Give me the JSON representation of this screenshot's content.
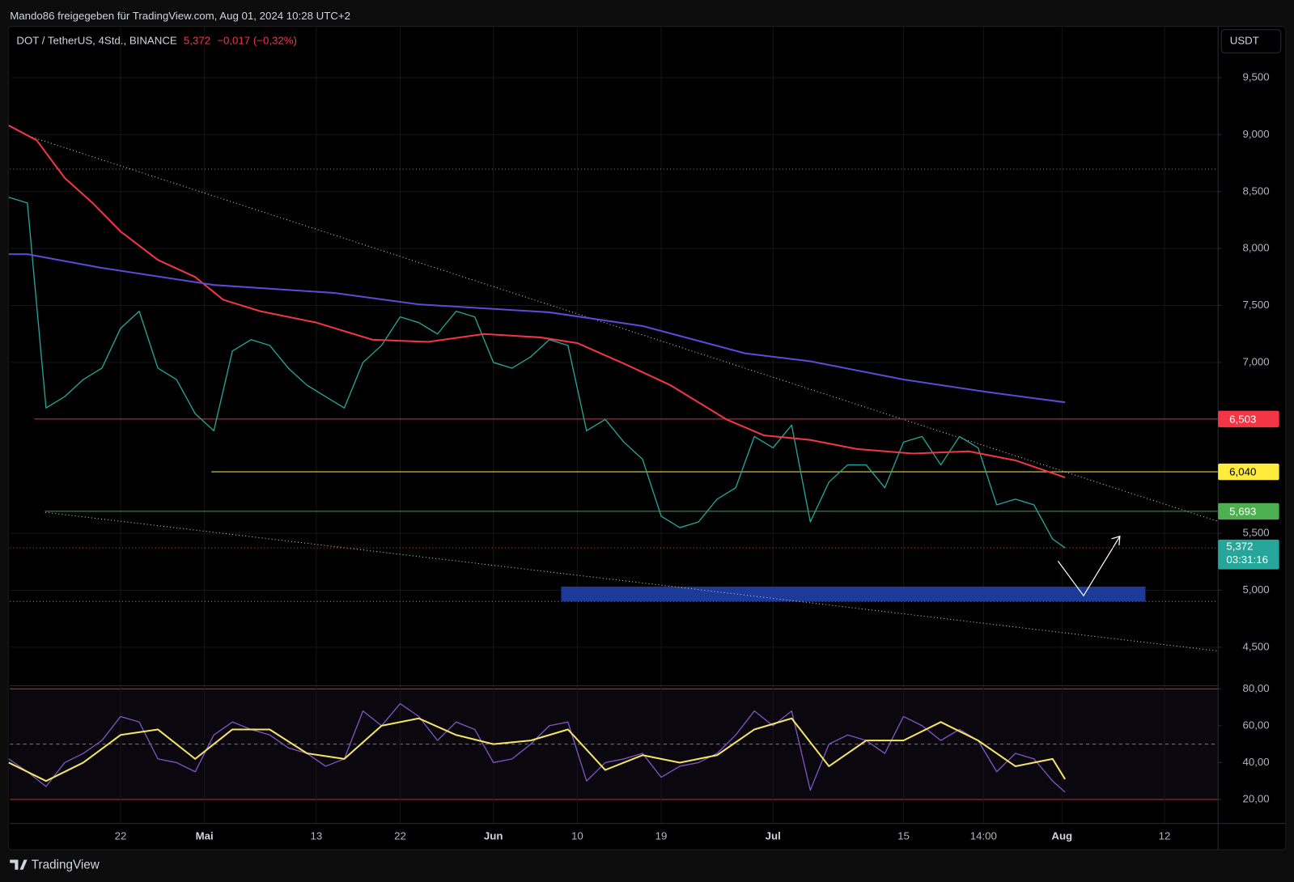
{
  "header": "Mando86 freigegeben für TradingView.com, Aug 01, 2024 10:28 UTC+2",
  "footer": "TradingView",
  "chart_data": [
    {
      "type": "line",
      "title": "DOT / TetherUS, 4Std., BINANCE",
      "last_price": "5,372",
      "change": "−0,017 (−0,32%)",
      "currency": "USDT",
      "xlim": [
        "2024-04-10T03:00",
        "2024-08-17T18:00"
      ],
      "ylim": [
        4.17,
        9.95
      ],
      "yticks": [
        {
          "value": 4.5,
          "label": "4,500"
        },
        {
          "value": 5,
          "label": "5,000"
        },
        {
          "value": 5.5,
          "label": "5,500"
        },
        {
          "value": 7,
          "label": "7,000"
        },
        {
          "value": 7.5,
          "label": "7,500"
        },
        {
          "value": 8,
          "label": "8,000"
        },
        {
          "value": 8.5,
          "label": "8,500"
        },
        {
          "value": 9,
          "label": "9,000"
        },
        {
          "value": 9.5,
          "label": "9,500"
        }
      ],
      "grid": true,
      "series": [
        {
          "color": "#26a69a",
          "x": [
            "2024-04-10",
            "2024-04-12",
            "2024-04-14",
            "2024-04-16",
            "2024-04-18",
            "2024-04-20",
            "2024-04-22",
            "2024-04-24",
            "2024-04-26",
            "2024-04-28",
            "2024-04-30",
            "2024-05-02",
            "2024-05-04",
            "2024-05-06",
            "2024-05-08",
            "2024-05-10",
            "2024-05-12",
            "2024-05-14",
            "2024-05-16",
            "2024-05-18",
            "2024-05-20",
            "2024-05-22",
            "2024-05-24",
            "2024-05-26",
            "2024-05-28",
            "2024-05-30",
            "2024-06-01",
            "2024-06-03",
            "2024-06-05",
            "2024-06-07",
            "2024-06-09",
            "2024-06-11",
            "2024-06-13",
            "2024-06-15",
            "2024-06-17",
            "2024-06-19",
            "2024-06-21",
            "2024-06-23",
            "2024-06-25",
            "2024-06-27",
            "2024-06-29",
            "2024-07-01",
            "2024-07-03",
            "2024-07-05",
            "2024-07-07",
            "2024-07-09",
            "2024-07-11",
            "2024-07-13",
            "2024-07-15",
            "2024-07-17",
            "2024-07-19",
            "2024-07-21",
            "2024-07-23",
            "2024-07-25",
            "2024-07-27",
            "2024-07-29",
            "2024-07-31",
            "2024-08-01T08:00"
          ],
          "values": [
            8.45,
            8.4,
            6.6,
            6.7,
            6.85,
            6.95,
            7.3,
            7.45,
            6.95,
            6.85,
            6.55,
            6.4,
            7.1,
            7.2,
            7.15,
            6.95,
            6.8,
            6.7,
            6.6,
            7.0,
            7.15,
            7.4,
            7.35,
            7.25,
            7.45,
            7.4,
            7.0,
            6.95,
            7.05,
            7.2,
            7.15,
            6.4,
            6.5,
            6.3,
            6.15,
            5.65,
            5.55,
            5.6,
            5.8,
            5.9,
            6.35,
            6.25,
            6.45,
            5.6,
            5.95,
            6.1,
            6.1,
            5.9,
            6.3,
            6.35,
            6.1,
            6.35,
            6.25,
            5.75,
            5.8,
            5.75,
            5.45,
            5.372
          ]
        },
        {
          "color": "#f23645",
          "x": [
            "2024-04-10",
            "2024-04-13",
            "2024-04-16",
            "2024-04-19",
            "2024-04-22",
            "2024-04-26",
            "2024-04-30",
            "2024-05-03",
            "2024-05-07",
            "2024-05-13",
            "2024-05-19",
            "2024-05-25",
            "2024-05-31",
            "2024-06-06",
            "2024-06-10",
            "2024-06-15",
            "2024-06-20",
            "2024-06-26",
            "2024-06-30",
            "2024-07-05",
            "2024-07-10",
            "2024-07-16",
            "2024-07-22",
            "2024-07-27",
            "2024-08-01T08:00"
          ],
          "values": [
            9.08,
            8.95,
            8.62,
            8.4,
            8.15,
            7.9,
            7.75,
            7.55,
            7.45,
            7.35,
            7.2,
            7.18,
            7.25,
            7.22,
            7.17,
            6.99,
            6.8,
            6.5,
            6.36,
            6.32,
            6.24,
            6.2,
            6.22,
            6.14,
            5.99
          ]
        },
        {
          "color": "#5b4bd6",
          "x": [
            "2024-04-10",
            "2024-04-12",
            "2024-04-20",
            "2024-05-02",
            "2024-05-15",
            "2024-05-24",
            "2024-06-07",
            "2024-06-17",
            "2024-06-28",
            "2024-07-05",
            "2024-07-15",
            "2024-07-24",
            "2024-08-01T08:00"
          ],
          "values": [
            7.95,
            7.95,
            7.83,
            7.68,
            7.61,
            7.51,
            7.44,
            7.32,
            7.08,
            7.01,
            6.85,
            6.74,
            6.65
          ]
        }
      ],
      "levels": [
        {
          "value": 6.503,
          "label": "6,503",
          "color": "#f23645",
          "from": "2024-04-12T18:00"
        },
        {
          "value": 6.04,
          "label": "6,040",
          "color": "#ffeb3b",
          "from": "2024-05-01T18:00"
        },
        {
          "value": 5.693,
          "label": "5,693",
          "color": "#4caf50",
          "from": "2024-04-13T21:00"
        }
      ],
      "current": {
        "value": 5.372,
        "label": "5,372",
        "countdown": "03:31:16",
        "color": "#26a69a"
      }
    },
    {
      "type": "line",
      "xlim": [
        "2024-04-10T03:00",
        "2024-08-17T18:00"
      ],
      "xticks": [
        {
          "value": "2024-04-22",
          "label": "22"
        },
        {
          "value": "2024-05-01",
          "label": "Mai"
        },
        {
          "value": "2024-05-13",
          "label": "13"
        },
        {
          "value": "2024-05-22",
          "label": "22"
        },
        {
          "value": "2024-06-01",
          "label": "Jun"
        },
        {
          "value": "2024-06-10",
          "label": "10"
        },
        {
          "value": "2024-06-19",
          "label": "19"
        },
        {
          "value": "2024-07-01",
          "label": "Jul"
        },
        {
          "value": "2024-07-15",
          "label": "15"
        },
        {
          "value": "2024-07-23T14:00",
          "label": "14:00"
        },
        {
          "value": "2024-08-01",
          "label": "Aug"
        },
        {
          "value": "2024-08-12",
          "label": "12"
        }
      ],
      "ylim": [
        7,
        81.3
      ],
      "yticks": [
        {
          "value": 20,
          "label": "20,00"
        },
        {
          "value": 40,
          "label": "40,00"
        },
        {
          "value": 60,
          "label": "60,00"
        },
        {
          "value": 80,
          "label": "80,00"
        }
      ],
      "band": [
        20,
        80
      ],
      "midline": 50,
      "series": [
        {
          "color": "#7e57c2",
          "x": [
            "2024-04-10",
            "2024-04-12",
            "2024-04-14",
            "2024-04-16",
            "2024-04-18",
            "2024-04-20",
            "2024-04-22",
            "2024-04-24",
            "2024-04-26",
            "2024-04-28",
            "2024-04-30",
            "2024-05-02",
            "2024-05-04",
            "2024-05-06",
            "2024-05-08",
            "2024-05-10",
            "2024-05-12",
            "2024-05-14",
            "2024-05-16",
            "2024-05-18",
            "2024-05-20",
            "2024-05-22",
            "2024-05-24",
            "2024-05-26",
            "2024-05-28",
            "2024-05-30",
            "2024-06-01",
            "2024-06-03",
            "2024-06-05",
            "2024-06-07",
            "2024-06-09",
            "2024-06-11",
            "2024-06-13",
            "2024-06-15",
            "2024-06-17",
            "2024-06-19",
            "2024-06-21",
            "2024-06-23",
            "2024-06-25",
            "2024-06-27",
            "2024-06-29",
            "2024-07-01",
            "2024-07-03",
            "2024-07-05",
            "2024-07-07",
            "2024-07-09",
            "2024-07-11",
            "2024-07-13",
            "2024-07-15",
            "2024-07-17",
            "2024-07-19",
            "2024-07-21",
            "2024-07-23",
            "2024-07-25",
            "2024-07-27",
            "2024-07-29",
            "2024-07-31",
            "2024-08-01T08:00"
          ],
          "values": [
            42,
            35,
            27,
            40,
            45,
            52,
            65,
            62,
            42,
            40,
            35,
            55,
            62,
            58,
            55,
            48,
            45,
            38,
            42,
            68,
            60,
            72,
            65,
            52,
            62,
            58,
            40,
            42,
            50,
            60,
            62,
            30,
            40,
            42,
            45,
            32,
            38,
            40,
            45,
            55,
            68,
            60,
            68,
            25,
            50,
            55,
            52,
            45,
            65,
            60,
            52,
            58,
            52,
            35,
            45,
            42,
            30,
            24
          ]
        },
        {
          "color": "#f7e463",
          "x": [
            "2024-04-10",
            "2024-04-14",
            "2024-04-18",
            "2024-04-22",
            "2024-04-26",
            "2024-04-30",
            "2024-05-04",
            "2024-05-08",
            "2024-05-12",
            "2024-05-16",
            "2024-05-20",
            "2024-05-24",
            "2024-05-28",
            "2024-06-01",
            "2024-06-05",
            "2024-06-09",
            "2024-06-13",
            "2024-06-17",
            "2024-06-21",
            "2024-06-25",
            "2024-06-29",
            "2024-07-03",
            "2024-07-07",
            "2024-07-11",
            "2024-07-15",
            "2024-07-19",
            "2024-07-23",
            "2024-07-27",
            "2024-07-31",
            "2024-08-01T08:00"
          ],
          "values": [
            40,
            30,
            40,
            55,
            58,
            42,
            58,
            58,
            45,
            42,
            60,
            64,
            55,
            50,
            52,
            58,
            36,
            44,
            40,
            44,
            58,
            64,
            38,
            52,
            52,
            62,
            52,
            38,
            42,
            31
          ]
        }
      ]
    }
  ]
}
